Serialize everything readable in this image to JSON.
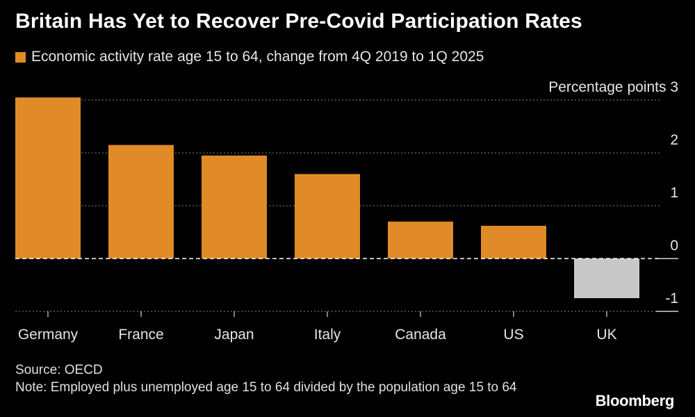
{
  "title": "Britain Has Yet to Recover Pre-Covid Participation Rates",
  "legend": {
    "label": "Economic activity rate age 15 to 64, change from 4Q 2019 to 1Q 2025"
  },
  "colors": {
    "positive": "#e08b27",
    "negative": "#c8c8c8",
    "background": "#000000",
    "grid": "#8a8a8a"
  },
  "source": "Source: OECD",
  "note": "Note: Employed plus unemployed age 15 to 64 divided by the population age 15 to 64",
  "brand": "Bloomberg",
  "chart_data": {
    "type": "bar",
    "categories": [
      "Germany",
      "France",
      "Japan",
      "Italy",
      "Canada",
      "US",
      "UK"
    ],
    "values": [
      3.05,
      2.15,
      1.95,
      1.6,
      0.7,
      0.62,
      -0.75
    ],
    "ylabel": "Percentage points",
    "ylim": [
      -1,
      3
    ],
    "yticks": [
      3,
      2,
      1,
      0,
      -1
    ],
    "grid": true,
    "axis_side": "right"
  }
}
